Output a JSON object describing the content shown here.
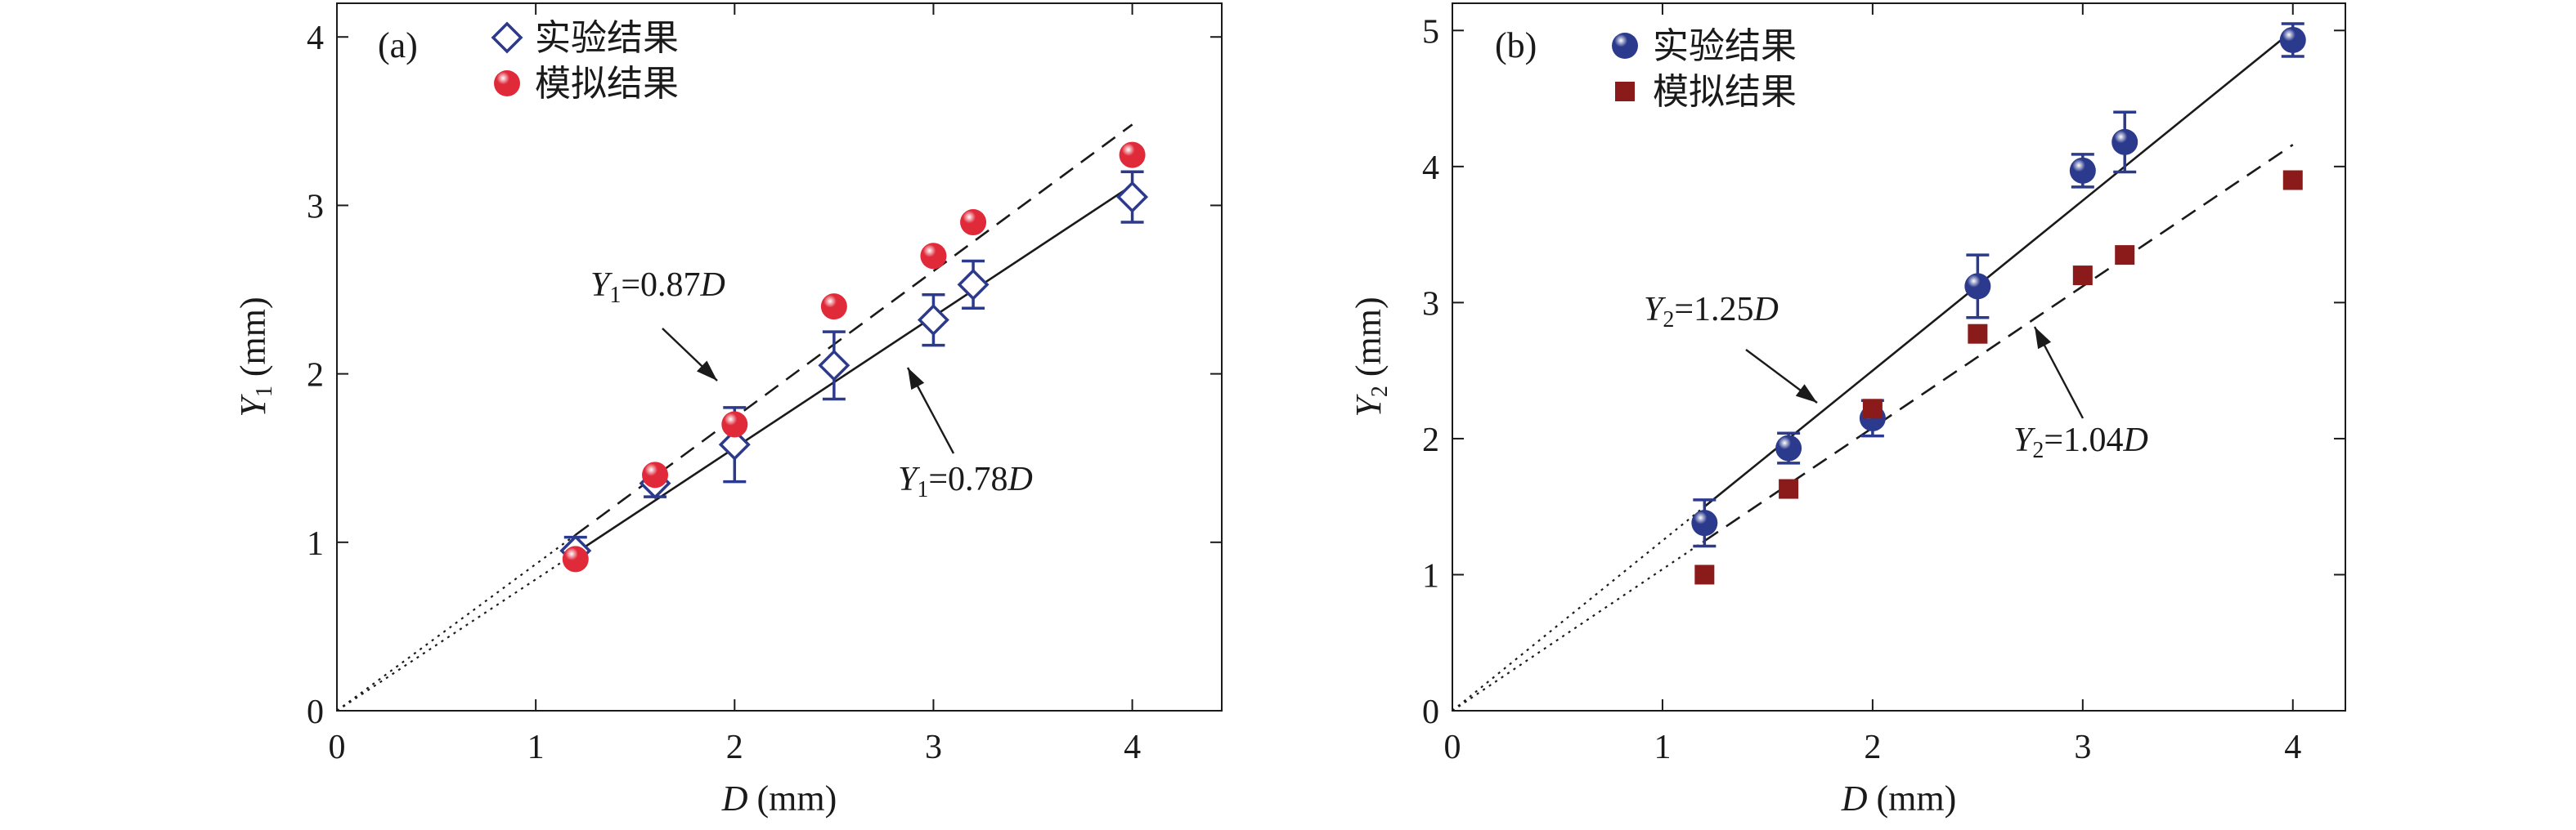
{
  "chart_data": [
    {
      "type": "scatter",
      "panel_label": "(a)",
      "xlabel": {
        "var": "D",
        "unit": " (mm)"
      },
      "ylabel": {
        "var": "Y",
        "sub": "1",
        "unit": " (mm)"
      },
      "xlim": [
        0,
        4.45
      ],
      "ylim": [
        0,
        4.2
      ],
      "xticks": [
        0,
        1,
        2,
        3,
        4
      ],
      "yticks": [
        0,
        1,
        2,
        3,
        4
      ],
      "legend_position": "top-left",
      "series": [
        {
          "name": "实验结果",
          "marker": "diamond-open",
          "color": "#2b3a8c",
          "x": [
            1.2,
            1.6,
            2.0,
            2.5,
            3.0,
            3.2,
            4.0
          ],
          "y": [
            0.95,
            1.35,
            1.58,
            2.05,
            2.32,
            2.53,
            3.05
          ],
          "error": [
            0.08,
            0.08,
            0.22,
            0.2,
            0.15,
            0.14,
            0.15
          ]
        },
        {
          "name": "模拟结果",
          "marker": "sphere",
          "color": "#e02a3a",
          "x": [
            1.2,
            1.6,
            2.0,
            2.5,
            3.0,
            3.2,
            4.0
          ],
          "y": [
            0.9,
            1.4,
            1.7,
            2.4,
            2.7,
            2.9,
            3.3
          ]
        }
      ],
      "fit_lines": [
        {
          "label_var": "Y",
          "label_sub": "1",
          "label_eq": "=0.87",
          "label_tail": "D",
          "slope": 0.87,
          "style": "dashed",
          "x_from": 1.2,
          "x_to": 4.0
        },
        {
          "label_var": "Y",
          "label_sub": "1",
          "label_eq": "=0.78",
          "label_tail": "D",
          "slope": 0.78,
          "style": "solid",
          "x_from": 1.2,
          "x_to": 4.0
        }
      ]
    },
    {
      "type": "scatter",
      "panel_label": "(b)",
      "xlabel": {
        "var": "D",
        "unit": " (mm)"
      },
      "ylabel": {
        "var": "Y",
        "sub": "2",
        "unit": " (mm)"
      },
      "xlim": [
        0,
        4.25
      ],
      "ylim": [
        0,
        5.2
      ],
      "xticks": [
        0,
        1,
        2,
        3,
        4
      ],
      "yticks": [
        0,
        1,
        2,
        3,
        4,
        5
      ],
      "legend_position": "top-left",
      "series": [
        {
          "name": "实验结果",
          "marker": "sphere",
          "color": "#2b3a8c",
          "x": [
            1.2,
            1.6,
            2.0,
            2.5,
            3.0,
            3.2,
            4.0
          ],
          "y": [
            1.38,
            1.93,
            2.15,
            3.12,
            3.97,
            4.18,
            4.93
          ],
          "error": [
            0.17,
            0.11,
            0.13,
            0.23,
            0.12,
            0.22,
            0.12
          ]
        },
        {
          "name": "模拟结果",
          "marker": "square",
          "color": "#8b1a1a",
          "x": [
            1.2,
            1.6,
            2.0,
            2.5,
            3.0,
            3.2,
            4.0
          ],
          "y": [
            1.0,
            1.63,
            2.22,
            2.77,
            3.2,
            3.35,
            3.9
          ]
        }
      ],
      "fit_lines": [
        {
          "label_var": "Y",
          "label_sub": "2",
          "label_eq": "=1.25",
          "label_tail": "D",
          "slope": 1.25,
          "style": "solid",
          "x_from": 1.2,
          "x_to": 4.0
        },
        {
          "label_var": "Y",
          "label_sub": "2",
          "label_eq": "=1.04",
          "label_tail": "D",
          "slope": 1.04,
          "style": "dashed",
          "x_from": 1.2,
          "x_to": 4.0
        }
      ]
    }
  ]
}
